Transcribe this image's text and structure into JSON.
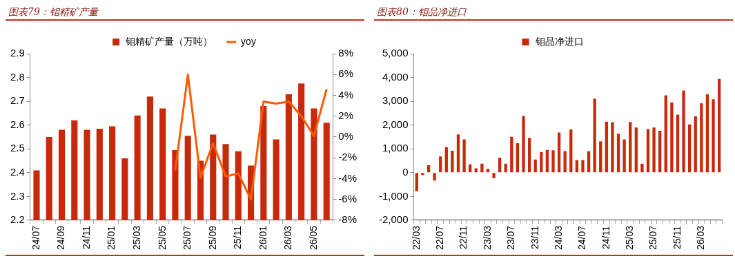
{
  "chart_data": [
    {
      "type": "bar",
      "title": "图表79：钼精矿产量",
      "legend": "top",
      "categories": [
        "24/07",
        null,
        "24/09",
        null,
        "24/11",
        null,
        "25/01",
        null,
        "25/03",
        null,
        "25/05",
        null,
        "25/07",
        null,
        "25/09",
        null,
        "25/11",
        null,
        "26/01",
        null,
        "26/03",
        null,
        "26/05",
        null
      ],
      "series": [
        {
          "name": "钼精矿产量（万吨）",
          "color": "#c8290a",
          "values": [
            2.41,
            2.55,
            2.58,
            2.62,
            2.58,
            2.585,
            2.595,
            2.46,
            2.64,
            2.72,
            2.67,
            2.495,
            2.555,
            2.45,
            2.56,
            2.52,
            2.49,
            2.43,
            2.68,
            2.54,
            2.73,
            2.775,
            2.67,
            2.61
          ]
        },
        {
          "name": "yoy",
          "type": "line",
          "axis": "y2",
          "color": "#ff5a00",
          "marker": "none",
          "values": [
            null,
            null,
            null,
            null,
            null,
            null,
            null,
            null,
            null,
            null,
            null,
            -3.2,
            6,
            -3.9,
            -0.6,
            -3.8,
            -3.5,
            -6,
            3.4,
            3.2,
            3.4,
            2.0,
            0.1,
            4.6
          ]
        }
      ],
      "ylim": [
        2.2,
        2.9
      ],
      "yticks": [
        2.2,
        2.3,
        2.4,
        2.5,
        2.6,
        2.7,
        2.8,
        2.9
      ],
      "y2lim": [
        -8,
        8
      ],
      "y2ticks": [
        {
          "value": -8,
          "label": "-8%"
        },
        {
          "value": -6,
          "label": "-6%"
        },
        {
          "value": -4,
          "label": "-4%"
        },
        {
          "value": -2,
          "label": "-2%"
        },
        {
          "value": 0,
          "label": "0%"
        },
        {
          "value": 2,
          "label": "2%"
        },
        {
          "value": 4,
          "label": "4%"
        },
        {
          "value": 6,
          "label": "6%"
        },
        {
          "value": 8,
          "label": "8%"
        }
      ]
    },
    {
      "type": "bar",
      "title": "图表80：钼品净进口",
      "legend": "top",
      "categories": [
        "22/03",
        null,
        null,
        null,
        "22/07",
        null,
        null,
        null,
        "22/11",
        null,
        null,
        null,
        "23/03",
        null,
        null,
        null,
        "23/07",
        null,
        null,
        null,
        "23/11",
        null,
        null,
        null,
        "24/03",
        null,
        null,
        null,
        "24/07",
        null,
        null,
        null,
        "24/11",
        null,
        null,
        null,
        "25/03",
        null,
        null,
        null,
        "25/07",
        null,
        null,
        null,
        "25/11",
        null,
        null,
        null,
        "26/03",
        null,
        null,
        null
      ],
      "series": [
        {
          "name": "钼品净进口",
          "color": "#c8290a",
          "values": [
            -780,
            -100,
            310,
            -330,
            680,
            1070,
            920,
            1610,
            1400,
            350,
            180,
            380,
            160,
            -230,
            630,
            380,
            1510,
            1240,
            2380,
            1460,
            550,
            870,
            960,
            940,
            1690,
            910,
            1820,
            530,
            530,
            900,
            3110,
            1320,
            2140,
            2120,
            1640,
            1400,
            2130,
            1900,
            380,
            1830,
            1900,
            1760,
            3250,
            2950,
            2440,
            3450,
            2030,
            2370,
            2920,
            3290,
            3080,
            3940
          ]
        }
      ],
      "ylim": [
        -2000,
        5000
      ],
      "yticks": [
        {
          "value": -2000,
          "label": "-2,000"
        },
        {
          "value": -1000,
          "label": "-1,000"
        },
        0,
        {
          "value": 1000,
          "label": "1,000"
        },
        {
          "value": 2000,
          "label": "2,000"
        },
        {
          "value": 3000,
          "label": "3,000"
        },
        {
          "value": 4000,
          "label": "4,000"
        },
        {
          "value": 5000,
          "label": "5,000"
        }
      ]
    }
  ]
}
